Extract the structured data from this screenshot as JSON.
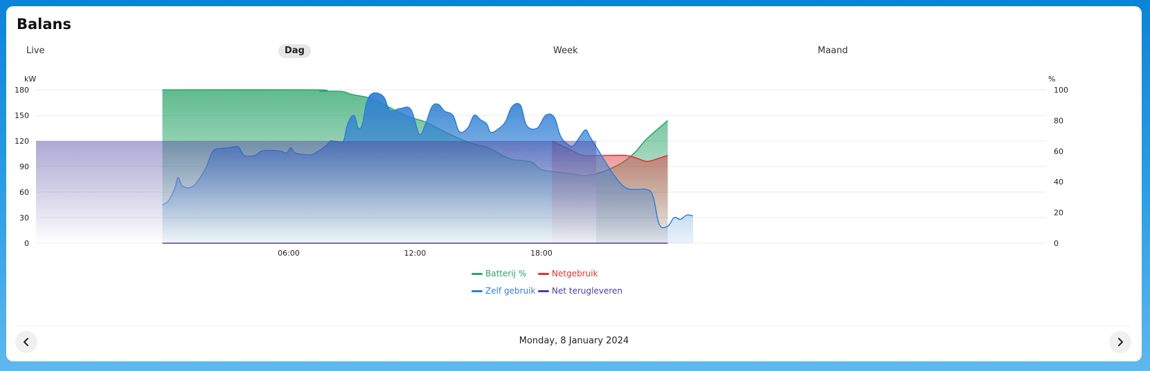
{
  "title": "Balans",
  "tabs": [
    {
      "label": "Live",
      "active": false
    },
    {
      "label": "Dag",
      "active": true
    },
    {
      "label": "Week",
      "active": false
    },
    {
      "label": "Maand",
      "active": false
    }
  ],
  "date": "Monday, 8 January 2024",
  "icons": {
    "prev": "chevron-left-icon",
    "next": "chevron-right-icon"
  },
  "chart_data": {
    "type": "area",
    "left_axis": {
      "unit": "kW",
      "ticks": [
        0,
        30,
        60,
        90,
        120,
        150,
        180
      ],
      "range": [
        0,
        180
      ]
    },
    "right_axis": {
      "unit": "%",
      "ticks": [
        0,
        20,
        40,
        60,
        80,
        100
      ],
      "range": [
        0,
        100
      ]
    },
    "x_ticks": [
      "06:00",
      "12:00",
      "18:00"
    ],
    "x_range_hours": [
      0,
      24
    ],
    "grid": true,
    "legend_position": "bottom-center",
    "series": [
      {
        "name": "Batterij %",
        "axis": "right",
        "color": "#2aa46a",
        "points": [
          [
            0,
            100
          ],
          [
            7.2,
            100
          ],
          [
            7.5,
            99
          ],
          [
            8.5,
            99
          ],
          [
            9,
            97
          ],
          [
            10,
            94
          ],
          [
            11,
            87
          ],
          [
            11.8,
            82
          ],
          [
            12.5,
            79
          ],
          [
            13.5,
            72
          ],
          [
            14.5,
            66
          ],
          [
            15.5,
            62
          ],
          [
            16.5,
            55
          ],
          [
            17.5,
            53
          ],
          [
            18,
            48
          ],
          [
            19,
            46
          ],
          [
            19.5,
            45
          ],
          [
            20,
            44
          ],
          [
            20.5,
            45
          ],
          [
            21,
            47
          ],
          [
            21.5,
            50
          ],
          [
            22,
            54
          ],
          [
            22.5,
            60
          ],
          [
            23,
            68
          ],
          [
            24,
            80
          ]
        ]
      },
      {
        "name": "Netgebruik",
        "axis": "left",
        "color": "#e03030",
        "points": [
          [
            18.5,
            120
          ],
          [
            19,
            114
          ],
          [
            19.5,
            108
          ],
          [
            20,
            103
          ],
          [
            21,
            103
          ],
          [
            22,
            103
          ],
          [
            22.5,
            100
          ],
          [
            23,
            96
          ],
          [
            23.5,
            99
          ],
          [
            24,
            103
          ]
        ]
      },
      {
        "name": "Zelf gebruik",
        "axis": "left",
        "color": "#2f7fd4",
        "points": [
          [
            0,
            45
          ],
          [
            0.3,
            50
          ],
          [
            0.6,
            65
          ],
          [
            0.75,
            77
          ],
          [
            0.95,
            67
          ],
          [
            1.4,
            66
          ],
          [
            1.8,
            77
          ],
          [
            2.1,
            90
          ],
          [
            2.4,
            108
          ],
          [
            2.8,
            111
          ],
          [
            3.2,
            112
          ],
          [
            3.6,
            113
          ],
          [
            3.9,
            103
          ],
          [
            4.4,
            103
          ],
          [
            4.7,
            108
          ],
          [
            5.2,
            109
          ],
          [
            5.6,
            108
          ],
          [
            5.9,
            106
          ],
          [
            6.1,
            112
          ],
          [
            6.3,
            106
          ],
          [
            6.8,
            104
          ],
          [
            7.1,
            104
          ],
          [
            7.4,
            108
          ],
          [
            7.8,
            115
          ],
          [
            8,
            120
          ],
          [
            8.3,
            119
          ],
          [
            8.6,
            120
          ],
          [
            8.8,
            140
          ],
          [
            9.1,
            150
          ],
          [
            9.3,
            135
          ],
          [
            9.5,
            140
          ],
          [
            9.7,
            165
          ],
          [
            10,
            176
          ],
          [
            10.5,
            172
          ],
          [
            10.8,
            156
          ],
          [
            11.3,
            158
          ],
          [
            11.8,
            157
          ],
          [
            12.2,
            128
          ],
          [
            12.5,
            140
          ],
          [
            12.8,
            160
          ],
          [
            13.1,
            163
          ],
          [
            13.4,
            155
          ],
          [
            13.8,
            150
          ],
          [
            14.1,
            131
          ],
          [
            14.5,
            135
          ],
          [
            14.8,
            150
          ],
          [
            15.1,
            145
          ],
          [
            15.4,
            140
          ],
          [
            15.6,
            130
          ],
          [
            16,
            135
          ],
          [
            16.3,
            143
          ],
          [
            16.6,
            160
          ],
          [
            17,
            162
          ],
          [
            17.3,
            138
          ],
          [
            17.8,
            135
          ],
          [
            18.2,
            150
          ],
          [
            18.6,
            148
          ],
          [
            18.9,
            126
          ],
          [
            19.2,
            117
          ],
          [
            19.5,
            114
          ],
          [
            19.8,
            124
          ],
          [
            20.1,
            133
          ],
          [
            20.3,
            125
          ],
          [
            20.6,
            113
          ],
          [
            21,
            97
          ],
          [
            21.5,
            78
          ],
          [
            22,
            65
          ],
          [
            22.5,
            63
          ],
          [
            23,
            63
          ],
          [
            23.3,
            55
          ],
          [
            23.6,
            22
          ],
          [
            24,
            20
          ],
          [
            24.3,
            30
          ],
          [
            24.6,
            28
          ],
          [
            24.9,
            33
          ],
          [
            25.2,
            32
          ]
        ]
      },
      {
        "name": "Net terugleveren",
        "axis": "left",
        "color": "#4b3f9e",
        "points": [
          [
            0,
            0
          ],
          [
            24,
            0
          ]
        ]
      }
    ],
    "tooltip": null
  }
}
